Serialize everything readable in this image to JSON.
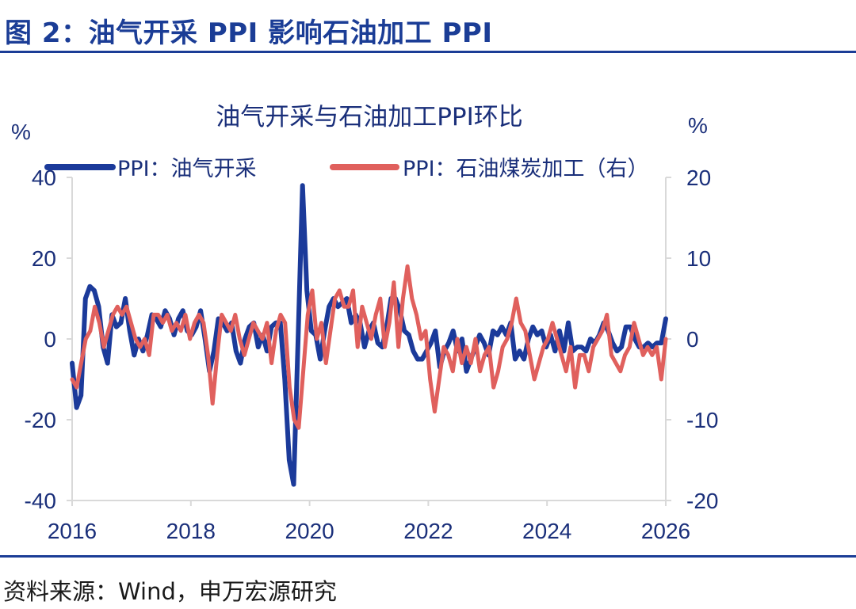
{
  "figure_title": "图 2：油气开采 PPI 影响石油加工 PPI",
  "source": "资料来源：Wind，申万宏源研究",
  "chart_data": {
    "type": "line",
    "title": "油气开采与石油加工PPI环比",
    "ylabel_left": "%",
    "ylabel_right": "%",
    "x_start": "2016-01",
    "x_end": "2026-01",
    "x_ticks": [
      "2016",
      "2018",
      "2020",
      "2022",
      "2024",
      "2026"
    ],
    "ylim_left": [
      -40,
      40
    ],
    "ylim_right": [
      -20,
      20
    ],
    "yticks_left": [
      "40",
      "20",
      "0",
      "-20",
      "-40"
    ],
    "yticks_right": [
      "20",
      "10",
      "0",
      "-10",
      "-20"
    ],
    "grid": false,
    "legend_position": "top",
    "series": [
      {
        "name": "PPI：油气开采",
        "axis": "left",
        "color": "#1b3a9a",
        "values": [
          -6,
          -17,
          -14,
          10,
          13,
          12,
          8,
          -2,
          -6,
          6,
          3,
          4,
          10,
          2,
          -4,
          0,
          -3,
          1,
          6,
          5,
          3,
          7,
          5,
          1,
          5,
          7,
          2,
          1,
          3,
          7,
          0,
          -8,
          -3,
          5,
          4,
          2,
          4,
          -3,
          -6,
          0,
          3,
          4,
          -2,
          1,
          -3,
          3,
          4,
          4,
          -10,
          -30,
          -36,
          0,
          38,
          12,
          2,
          1,
          -5,
          2,
          8,
          10,
          8,
          9,
          10,
          4,
          6,
          4,
          -2,
          2,
          4,
          -1,
          -2,
          3,
          10,
          10,
          7,
          2,
          1,
          -3,
          -5,
          -5,
          -3,
          -1,
          2,
          -7,
          -3,
          -1,
          2,
          -3,
          0,
          -8,
          -5,
          -2,
          1,
          -1,
          -4,
          2,
          1,
          3,
          1,
          4,
          -5,
          -3,
          -5,
          0,
          3,
          1,
          2,
          -2,
          1,
          -3,
          2,
          -3,
          4,
          -3,
          -2,
          -2,
          -3,
          0,
          -1,
          1,
          4,
          2,
          -1,
          -3,
          -2,
          3,
          3,
          0,
          -2,
          -2,
          -1,
          -2,
          -1,
          -1,
          5
        ]
      },
      {
        "name": "PPI：石油煤炭加工（右）",
        "axis": "right",
        "color": "#e0605d",
        "values": [
          -5,
          -6,
          -3,
          0,
          1,
          4,
          2,
          -1,
          1,
          3,
          4,
          3,
          4,
          2,
          0,
          -1,
          0,
          -2,
          3,
          3,
          2,
          3,
          1,
          2,
          1,
          3,
          0,
          2,
          3,
          2,
          -2,
          -8,
          -2,
          3,
          2,
          1,
          3,
          0,
          -2,
          0,
          2,
          1,
          0,
          2,
          -3,
          1,
          3,
          2,
          -6,
          -10,
          -11,
          -4,
          3,
          6,
          0,
          2,
          -3,
          1,
          5,
          6,
          4,
          4,
          6,
          -1,
          4,
          2,
          0,
          3,
          5,
          -1,
          2,
          7,
          -1,
          5,
          9,
          5,
          3,
          0,
          1,
          -5,
          -9,
          -5,
          -1,
          -2,
          -4,
          0,
          -3,
          -1,
          -3,
          0,
          -4,
          -2,
          -1,
          -6,
          -4,
          -1,
          0,
          2,
          5,
          2,
          1,
          -2,
          -5,
          -3,
          -1,
          0,
          2,
          0,
          -2,
          -4,
          -1,
          -6,
          -2,
          -2,
          -4,
          -1,
          0,
          1,
          3,
          -2,
          -3,
          -4,
          -2,
          -1,
          2,
          0,
          -2,
          -1,
          -2,
          -1,
          -5,
          0
        ]
      }
    ]
  }
}
